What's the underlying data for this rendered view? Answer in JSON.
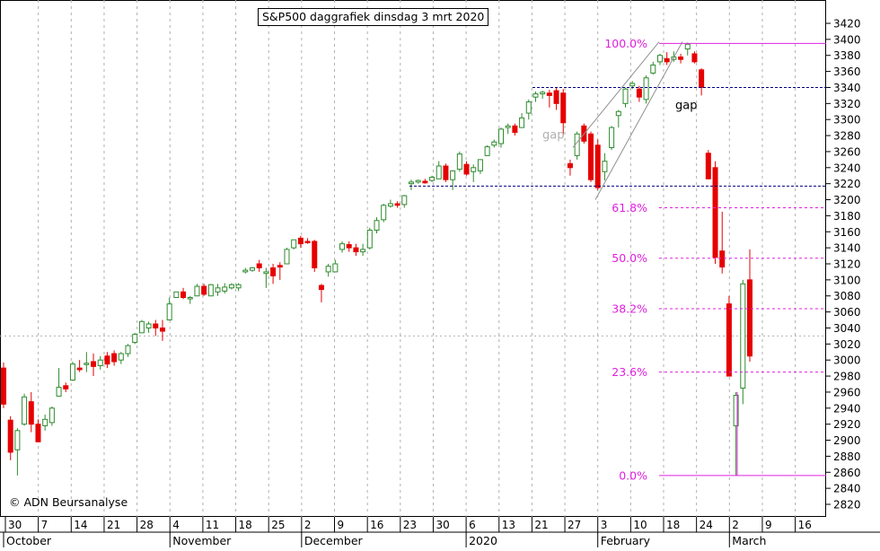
{
  "chart_data": {
    "type": "candlestick",
    "title": "S&P500 daggrafiek dinsdag 3 mrt 2020",
    "copyright": "© ADN Beursanalyse",
    "y_axis": {
      "min": 2810,
      "max": 3430,
      "ticks": [
        2820,
        2840,
        2860,
        2880,
        2900,
        2920,
        2940,
        2960,
        2980,
        3000,
        3020,
        3040,
        3060,
        3080,
        3100,
        3120,
        3140,
        3160,
        3180,
        3200,
        3220,
        3240,
        3260,
        3280,
        3300,
        3320,
        3340,
        3360,
        3380,
        3400,
        3420
      ]
    },
    "x_ticks": [
      "30",
      "7",
      "14",
      "21",
      "28",
      "4",
      "11",
      "18",
      "25",
      "2",
      "9",
      "16",
      "23",
      "30",
      "6",
      "13",
      "21",
      "27",
      "3",
      "10",
      "18",
      "24",
      "2",
      "9",
      "16"
    ],
    "months": [
      "October",
      "November",
      "December",
      "2020",
      "February",
      "March"
    ],
    "colors": {
      "up": "#2e8b2e",
      "down": "#e60000",
      "fib": "#e020e0",
      "support": "#000080",
      "trend": "#909090",
      "grid": "#b0b0b0"
    },
    "candles": [
      {
        "o": 2990,
        "h": 2997,
        "l": 2940,
        "c": 2945
      },
      {
        "o": 2925,
        "h": 2930,
        "l": 2875,
        "c": 2885
      },
      {
        "o": 2888,
        "h": 2915,
        "l": 2856,
        "c": 2912
      },
      {
        "o": 2920,
        "h": 2958,
        "l": 2918,
        "c": 2954
      },
      {
        "o": 2948,
        "h": 2960,
        "l": 2910,
        "c": 2920
      },
      {
        "o": 2920,
        "h": 2926,
        "l": 2898,
        "c": 2898
      },
      {
        "o": 2918,
        "h": 2932,
        "l": 2912,
        "c": 2926
      },
      {
        "o": 2922,
        "h": 2942,
        "l": 2918,
        "c": 2940
      },
      {
        "o": 2955,
        "h": 2990,
        "l": 2955,
        "c": 2966
      },
      {
        "o": 2968,
        "h": 2972,
        "l": 2960,
        "c": 2964
      },
      {
        "o": 2975,
        "h": 2998,
        "l": 2974,
        "c": 2995
      },
      {
        "o": 2990,
        "h": 3000,
        "l": 2985,
        "c": 2988
      },
      {
        "o": 2995,
        "h": 3010,
        "l": 2985,
        "c": 2996
      },
      {
        "o": 2998,
        "h": 3008,
        "l": 2980,
        "c": 2992
      },
      {
        "o": 2993,
        "h": 3005,
        "l": 2988,
        "c": 3000
      },
      {
        "o": 3005,
        "h": 3010,
        "l": 2990,
        "c": 2995
      },
      {
        "o": 3008,
        "h": 3012,
        "l": 2993,
        "c": 2998
      },
      {
        "o": 3000,
        "h": 3010,
        "l": 2995,
        "c": 3008
      },
      {
        "o": 3008,
        "h": 3020,
        "l": 3004,
        "c": 3018
      },
      {
        "o": 3022,
        "h": 3034,
        "l": 3020,
        "c": 3032
      },
      {
        "o": 3034,
        "h": 3050,
        "l": 3034,
        "c": 3048
      },
      {
        "o": 3040,
        "h": 3048,
        "l": 3034,
        "c": 3045
      },
      {
        "o": 3045,
        "h": 3050,
        "l": 3030,
        "c": 3040
      },
      {
        "o": 3040,
        "h": 3050,
        "l": 3024,
        "c": 3036
      },
      {
        "o": 3050,
        "h": 3078,
        "l": 3050,
        "c": 3070
      },
      {
        "o": 3078,
        "h": 3085,
        "l": 3078,
        "c": 3085
      },
      {
        "o": 3085,
        "h": 3090,
        "l": 3076,
        "c": 3078
      },
      {
        "o": 3077,
        "h": 3080,
        "l": 3070,
        "c": 3078
      },
      {
        "o": 3080,
        "h": 3095,
        "l": 3080,
        "c": 3092
      },
      {
        "o": 3092,
        "h": 3095,
        "l": 3080,
        "c": 3082
      },
      {
        "o": 3080,
        "h": 3095,
        "l": 3080,
        "c": 3094
      },
      {
        "o": 3085,
        "h": 3095,
        "l": 3080,
        "c": 3090
      },
      {
        "o": 3086,
        "h": 3096,
        "l": 3083,
        "c": 3091
      },
      {
        "o": 3090,
        "h": 3096,
        "l": 3088,
        "c": 3094
      },
      {
        "o": 3090,
        "h": 3096,
        "l": 3086,
        "c": 3094
      },
      {
        "o": 3110,
        "h": 3115,
        "l": 3108,
        "c": 3112
      },
      {
        "o": 3112,
        "h": 3116,
        "l": 3110,
        "c": 3115
      },
      {
        "o": 3120,
        "h": 3125,
        "l": 3110,
        "c": 3115
      },
      {
        "o": 3108,
        "h": 3115,
        "l": 3090,
        "c": 3110
      },
      {
        "o": 3115,
        "h": 3120,
        "l": 3095,
        "c": 3105
      },
      {
        "o": 3118,
        "h": 3122,
        "l": 3100,
        "c": 3116
      },
      {
        "o": 3120,
        "h": 3140,
        "l": 3120,
        "c": 3138
      },
      {
        "o": 3140,
        "h": 3150,
        "l": 3138,
        "c": 3150
      },
      {
        "o": 3152,
        "h": 3155,
        "l": 3140,
        "c": 3145
      },
      {
        "o": 3148,
        "h": 3152,
        "l": 3145,
        "c": 3147
      },
      {
        "o": 3148,
        "h": 3150,
        "l": 3110,
        "c": 3115
      },
      {
        "o": 3093,
        "h": 3095,
        "l": 3072,
        "c": 3088
      },
      {
        "o": 3110,
        "h": 3120,
        "l": 3104,
        "c": 3117
      },
      {
        "o": 3110,
        "h": 3125,
        "l": 3110,
        "c": 3120
      },
      {
        "o": 3138,
        "h": 3148,
        "l": 3134,
        "c": 3145
      },
      {
        "o": 3144,
        "h": 3148,
        "l": 3135,
        "c": 3140
      },
      {
        "o": 3140,
        "h": 3145,
        "l": 3130,
        "c": 3135
      },
      {
        "o": 3135,
        "h": 3145,
        "l": 3130,
        "c": 3138
      },
      {
        "o": 3140,
        "h": 3165,
        "l": 3138,
        "c": 3162
      },
      {
        "o": 3162,
        "h": 3178,
        "l": 3158,
        "c": 3174
      },
      {
        "o": 3175,
        "h": 3195,
        "l": 3172,
        "c": 3193
      },
      {
        "o": 3192,
        "h": 3200,
        "l": 3190,
        "c": 3195
      },
      {
        "o": 3195,
        "h": 3198,
        "l": 3190,
        "c": 3193
      },
      {
        "o": 3194,
        "h": 3206,
        "l": 3190,
        "c": 3205
      },
      {
        "o": 3220,
        "h": 3225,
        "l": 3212,
        "c": 3222
      },
      {
        "o": 3222,
        "h": 3225,
        "l": 3220,
        "c": 3224
      },
      {
        "o": 3223,
        "h": 3226,
        "l": 3220,
        "c": 3221
      },
      {
        "o": 3224,
        "h": 3230,
        "l": 3222,
        "c": 3228
      },
      {
        "o": 3226,
        "h": 3248,
        "l": 3226,
        "c": 3242
      },
      {
        "o": 3242,
        "h": 3245,
        "l": 3222,
        "c": 3225
      },
      {
        "o": 3225,
        "h": 3237,
        "l": 3212,
        "c": 3236
      },
      {
        "o": 3238,
        "h": 3260,
        "l": 3235,
        "c": 3257
      },
      {
        "o": 3244,
        "h": 3248,
        "l": 3230,
        "c": 3232
      },
      {
        "o": 3235,
        "h": 3244,
        "l": 3222,
        "c": 3240
      },
      {
        "o": 3236,
        "h": 3250,
        "l": 3232,
        "c": 3250
      },
      {
        "o": 3255,
        "h": 3268,
        "l": 3255,
        "c": 3266
      },
      {
        "o": 3268,
        "h": 3275,
        "l": 3265,
        "c": 3272
      },
      {
        "o": 3270,
        "h": 3290,
        "l": 3265,
        "c": 3288
      },
      {
        "o": 3290,
        "h": 3295,
        "l": 3282,
        "c": 3292
      },
      {
        "o": 3292,
        "h": 3295,
        "l": 3280,
        "c": 3284
      },
      {
        "o": 3290,
        "h": 3308,
        "l": 3290,
        "c": 3302
      },
      {
        "o": 3308,
        "h": 3325,
        "l": 3300,
        "c": 3322
      },
      {
        "o": 3328,
        "h": 3335,
        "l": 3322,
        "c": 3332
      },
      {
        "o": 3332,
        "h": 3336,
        "l": 3326,
        "c": 3334
      },
      {
        "o": 3333,
        "h": 3337,
        "l": 3315,
        "c": 3330
      },
      {
        "o": 3336,
        "h": 3340,
        "l": 3312,
        "c": 3320
      },
      {
        "o": 3333,
        "h": 3338,
        "l": 3280,
        "c": 3296
      },
      {
        "o": 3245,
        "h": 3250,
        "l": 3230,
        "c": 3240
      },
      {
        "o": 3255,
        "h": 3285,
        "l": 3250,
        "c": 3282
      },
      {
        "o": 3292,
        "h": 3295,
        "l": 3270,
        "c": 3273
      },
      {
        "o": 3282,
        "h": 3285,
        "l": 3222,
        "c": 3225
      },
      {
        "o": 3268,
        "h": 3275,
        "l": 3212,
        "c": 3215
      },
      {
        "o": 3235,
        "h": 3258,
        "l": 3224,
        "c": 3248
      },
      {
        "o": 3265,
        "h": 3292,
        "l": 3262,
        "c": 3290
      },
      {
        "o": 3305,
        "h": 3312,
        "l": 3290,
        "c": 3310
      },
      {
        "o": 3320,
        "h": 3340,
        "l": 3315,
        "c": 3338
      },
      {
        "o": 3342,
        "h": 3348,
        "l": 3338,
        "c": 3345
      },
      {
        "o": 3338,
        "h": 3342,
        "l": 3322,
        "c": 3328
      },
      {
        "o": 3325,
        "h": 3355,
        "l": 3320,
        "c": 3352
      },
      {
        "o": 3358,
        "h": 3372,
        "l": 3356,
        "c": 3368
      },
      {
        "o": 3372,
        "h": 3382,
        "l": 3368,
        "c": 3380
      },
      {
        "o": 3376,
        "h": 3384,
        "l": 3368,
        "c": 3372
      },
      {
        "o": 3375,
        "h": 3385,
        "l": 3372,
        "c": 3378
      },
      {
        "o": 3378,
        "h": 3382,
        "l": 3370,
        "c": 3375
      },
      {
        "o": 3388,
        "h": 3396,
        "l": 3380,
        "c": 3394
      },
      {
        "o": 3382,
        "h": 3385,
        "l": 3370,
        "c": 3372
      },
      {
        "o": 3362,
        "h": 3364,
        "l": 3330,
        "c": 3340
      },
      {
        "o": 3258,
        "h": 3262,
        "l": 3226,
        "c": 3226
      },
      {
        "o": 3240,
        "h": 3248,
        "l": 3120,
        "c": 3128
      },
      {
        "o": 3136,
        "h": 3185,
        "l": 3108,
        "c": 3116
      },
      {
        "o": 3070,
        "h": 3080,
        "l": 2980,
        "c": 2980
      },
      {
        "o": 2918,
        "h": 2960,
        "l": 2856,
        "c": 2956
      },
      {
        "o": 2965,
        "h": 3100,
        "l": 2945,
        "c": 3095
      },
      {
        "o": 3100,
        "h": 3138,
        "l": 2998,
        "c": 3005
      }
    ],
    "fib_levels": [
      {
        "label": "100.0%",
        "value": 3395
      },
      {
        "label": "61.8%",
        "value": 3190
      },
      {
        "label": "50.0%",
        "value": 3127
      },
      {
        "label": "38.2%",
        "value": 3064
      },
      {
        "label": "23.6%",
        "value": 2985
      },
      {
        "label": "0.0%",
        "value": 2856
      }
    ],
    "support_lines": [
      3340,
      3217
    ],
    "annotations": [
      "gap",
      "gap"
    ]
  }
}
